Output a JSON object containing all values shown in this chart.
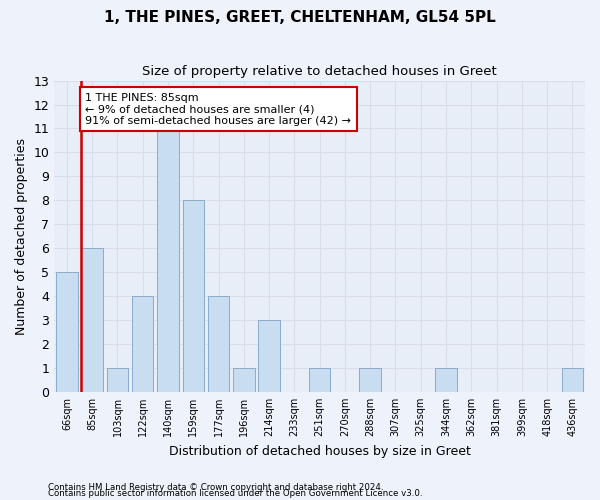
{
  "title": "1, THE PINES, GREET, CHELTENHAM, GL54 5PL",
  "subtitle": "Size of property relative to detached houses in Greet",
  "xlabel": "Distribution of detached houses by size in Greet",
  "ylabel": "Number of detached properties",
  "bar_labels": [
    "66sqm",
    "85sqm",
    "103sqm",
    "122sqm",
    "140sqm",
    "159sqm",
    "177sqm",
    "196sqm",
    "214sqm",
    "233sqm",
    "251sqm",
    "270sqm",
    "288sqm",
    "307sqm",
    "325sqm",
    "344sqm",
    "362sqm",
    "381sqm",
    "399sqm",
    "418sqm",
    "436sqm"
  ],
  "bar_values": [
    5,
    6,
    1,
    4,
    11,
    8,
    4,
    1,
    3,
    0,
    1,
    0,
    1,
    0,
    0,
    1,
    0,
    0,
    0,
    0,
    1
  ],
  "bar_color": "#c9ddf0",
  "bar_edgecolor": "#8aabcc",
  "vline_x": 1,
  "vline_color": "#cc0000",
  "annotation_text": "1 THE PINES: 85sqm\n← 9% of detached houses are smaller (4)\n91% of semi-detached houses are larger (42) →",
  "annotation_box_color": "#ffffff",
  "annotation_box_edgecolor": "#cc0000",
  "ylim": [
    0,
    13
  ],
  "yticks": [
    0,
    1,
    2,
    3,
    4,
    5,
    6,
    7,
    8,
    9,
    10,
    11,
    12,
    13
  ],
  "footer1": "Contains HM Land Registry data © Crown copyright and database right 2024.",
  "footer2": "Contains public sector information licensed under the Open Government Licence v3.0.",
  "bg_color": "#eef2fa",
  "plot_bg_color": "#e8eef8",
  "grid_color": "#d8dde8",
  "title_fontsize": 11,
  "subtitle_fontsize": 9.5,
  "xlabel_fontsize": 9,
  "ylabel_fontsize": 9,
  "annotation_fontsize": 8
}
